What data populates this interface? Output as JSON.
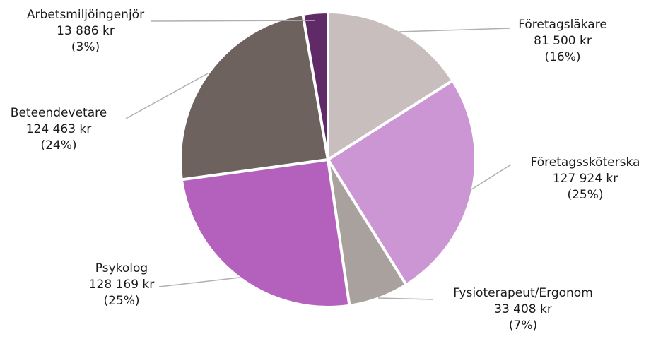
{
  "chart_data": {
    "type": "pie",
    "title": "",
    "currency": "kr",
    "slices": [
      {
        "name": "Företagsläkare",
        "value": 81500,
        "value_label": "81 500 kr",
        "percent_label": "(16%)",
        "color": "#c7bebd"
      },
      {
        "name": "Företagssköterska",
        "value": 127924,
        "value_label": "127 924 kr",
        "percent_label": "(25%)",
        "color": "#cc96d5"
      },
      {
        "name": "Fysioterapeut/Ergonom",
        "value": 33408,
        "value_label": "33 408 kr",
        "percent_label": "(7%)",
        "color": "#a9a19e"
      },
      {
        "name": "Psykolog",
        "value": 128169,
        "value_label": "128 169 kr",
        "percent_label": "(25%)",
        "color": "#b461bd"
      },
      {
        "name": "Beteendevetare",
        "value": 124463,
        "value_label": "124 463 kr",
        "percent_label": "(24%)",
        "color": "#6d625d"
      },
      {
        "name": "Arbetsmiljöingenjör",
        "value": 13886,
        "value_label": "13 886 kr",
        "percent_label": "(3%)",
        "color": "#5f2a67"
      }
    ]
  }
}
